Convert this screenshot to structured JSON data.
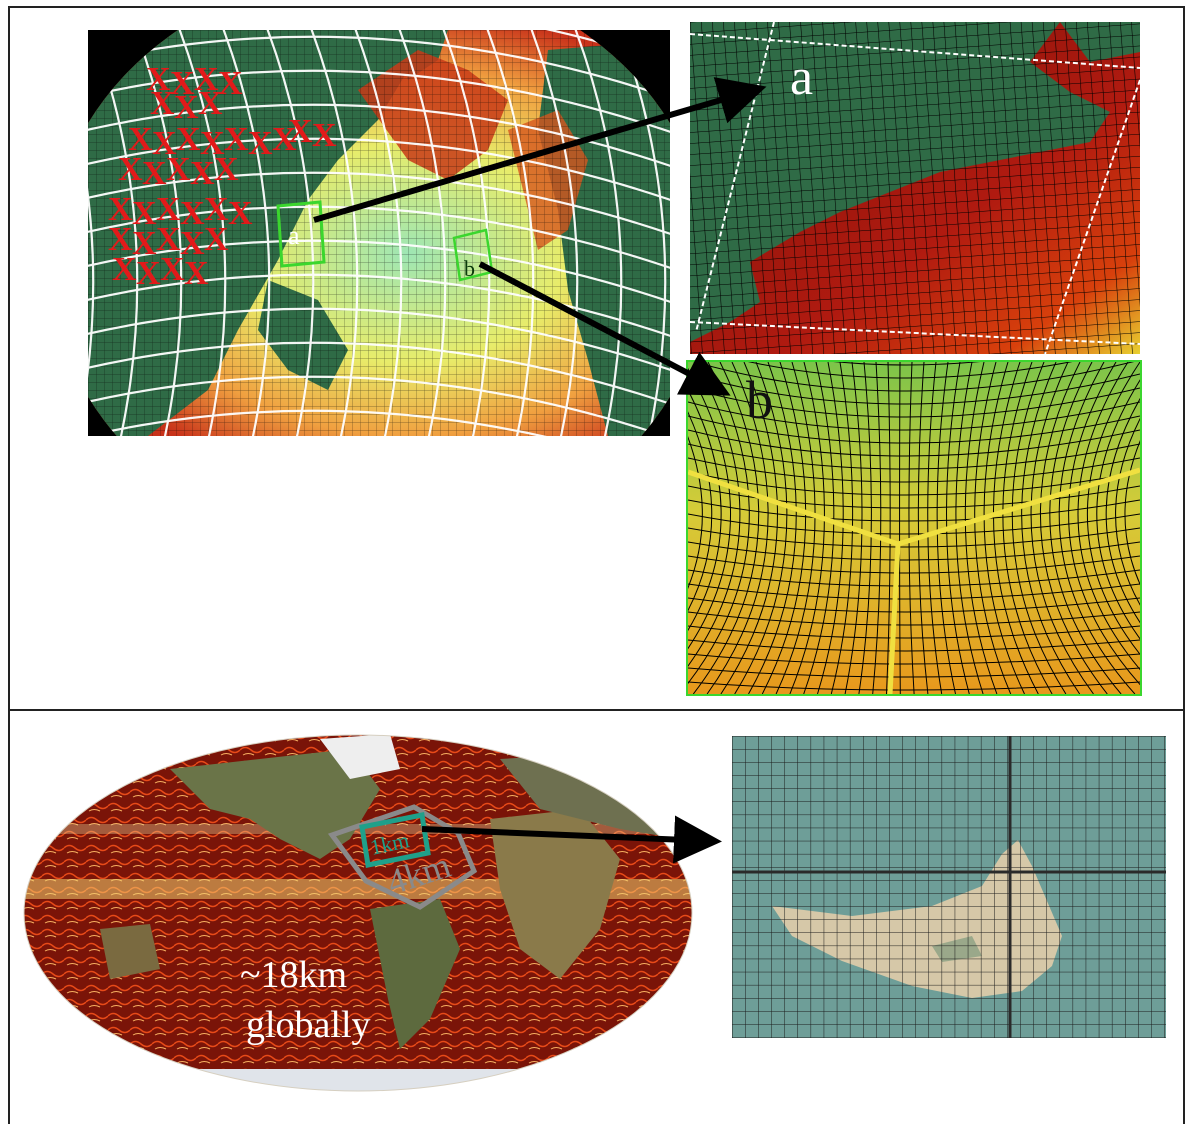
{
  "figure": {
    "top_panel": {
      "globe": {
        "box_a_label": "a",
        "box_b_label": "b",
        "land_mask_symbol": "X"
      },
      "inset_a_label": "a",
      "inset_b_label": "b"
    },
    "bottom_panel": {
      "map_text_line1": "~18km",
      "map_text_line2": "globally",
      "outer_box_label": "4km",
      "inner_box_label": "1km"
    }
  },
  "colors": {
    "ocean_deep": "#b01a10",
    "ocean_shallow": "#e8e060",
    "land_green": "#2f6b46",
    "grid_white": "#ffffff",
    "box_green": "#3bd62e",
    "box_teal": "#1fa08a",
    "box_gray": "#8a8a8a",
    "mask_red": "#e21a1a"
  }
}
